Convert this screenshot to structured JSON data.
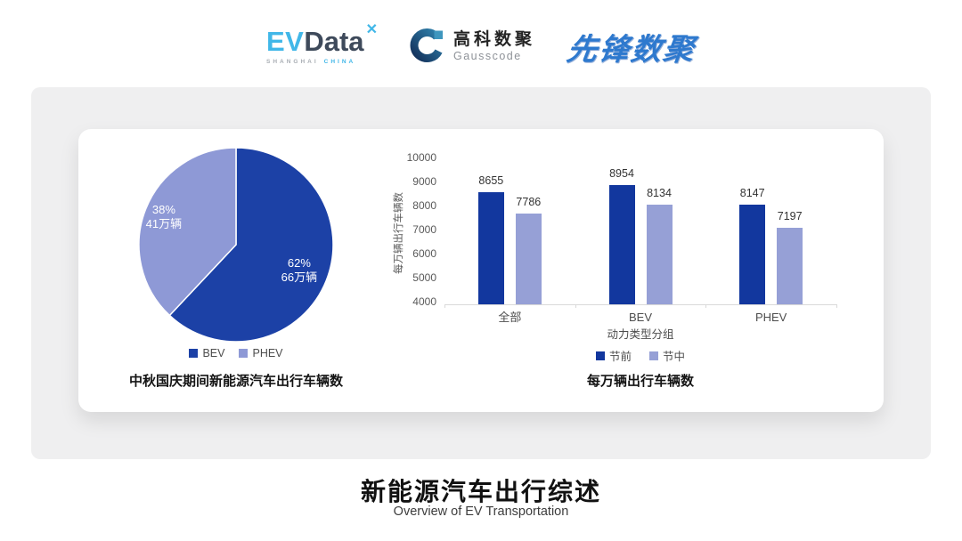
{
  "header": {
    "evdata": {
      "ev": "EV",
      "data": "Data",
      "star": "✕",
      "sub_left": "SHANGHAI",
      "sub_right": "CHINA"
    },
    "gausscode": {
      "cn": "高科数聚",
      "en": "Gausscode"
    },
    "xianfeng": "先锋数聚"
  },
  "theme": {
    "panel_bg": "#EFEFF0",
    "card_bg": "#FFFFFF",
    "primary_dark_blue": "#12379E",
    "secondary_periwinkle": "#96A0D6",
    "axis_gray": "#D9D9D9",
    "evdata_cyan": "#41B7E8",
    "evdata_slate": "#3E4A5B",
    "xianfeng_blue": "#2E79CE"
  },
  "chart_data": [
    {
      "type": "pie",
      "title": "中秋国庆期间新能源汽车出行车辆数",
      "unit": "万辆",
      "legend_position": "bottom",
      "slices": [
        {
          "label": "BEV",
          "percent": 62,
          "value_wan": 66,
          "percent_label": "62%",
          "value_label": "66万辆",
          "color": "#1C41A6"
        },
        {
          "label": "PHEV",
          "percent": 38,
          "value_wan": 41,
          "percent_label": "38%",
          "value_label": "41万辆",
          "color": "#8E99D6"
        }
      ]
    },
    {
      "type": "bar",
      "title": "每万辆出行车辆数",
      "xlabel": "动力类型分组",
      "ylabel": "每万辆出行车辆数",
      "ylim": [
        4000,
        10000
      ],
      "ytick_step": 1000,
      "grid": false,
      "legend_position": "bottom",
      "categories": [
        "全部",
        "BEV",
        "PHEV"
      ],
      "series": [
        {
          "name": "节前",
          "values": [
            8655,
            8954,
            8147
          ],
          "color": "#12379E"
        },
        {
          "name": "节中",
          "values": [
            7786,
            8134,
            7197
          ],
          "color": "#96A0D6"
        }
      ]
    }
  ],
  "footer": {
    "title": "新能源汽车出行综述",
    "subtitle": "Overview of EV Transportation"
  }
}
